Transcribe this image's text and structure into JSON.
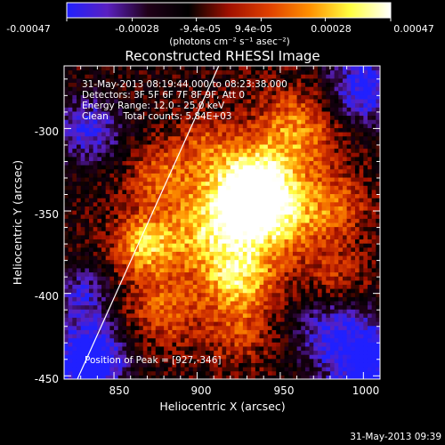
{
  "chart_data": {
    "type": "heatmap",
    "title": "Reconstructed RHESSI Image",
    "xlabel": "Heliocentric X (arcsec)",
    "ylabel": "Heliocentric Y (arcsec)",
    "xlim": [
      820,
      1010
    ],
    "ylim": [
      -452,
      -262
    ],
    "x_ticks": [
      "850",
      "900",
      "950",
      "1000"
    ],
    "x_tick_values": [
      850,
      900,
      950,
      1000
    ],
    "y_ticks": [
      "-300",
      "-350",
      "-400",
      "-450"
    ],
    "y_tick_values": [
      -300,
      -350,
      -400,
      -450
    ],
    "colorbar": {
      "min": -0.00047,
      "max": 0.00047,
      "tick_labels": [
        "-0.00047",
        "-0.00028",
        "-9.4e-05",
        "9.4e-05",
        "0.00028",
        "0.00047"
      ],
      "tick_values": [
        -0.00047,
        -0.00028,
        -9.4e-05,
        9.4e-05,
        0.00028,
        0.00047
      ],
      "unit_label": "(photons cm⁻² s⁻¹ asec⁻²)",
      "colormap_stops": [
        "#2020ff",
        "#5a20c0",
        "#200018",
        "#000000",
        "#a01000",
        "#e04000",
        "#ff9000",
        "#ffff40",
        "#ffffff"
      ]
    },
    "annotations": [
      "31-May-2013 08:19:44.000 to 08:23:38.000",
      "Detectors: 3F 5F 6F 7F 8F 9F, Att 0",
      "Energy Range: 12.0 - 25.0 keV",
      "Clean     Total counts: 5.84E+03"
    ],
    "peak_label": "Position of Peak = [927,-346]",
    "peak": [
      927,
      -346
    ],
    "limb_line": [
      [
        828,
        -452
      ],
      [
        913,
        -262
      ]
    ],
    "blobs": [
      {
        "x": 927,
        "y": -346,
        "amp": 1.0,
        "w": 18
      },
      {
        "x": 938,
        "y": -330,
        "amp": 0.55,
        "w": 16
      },
      {
        "x": 925,
        "y": -390,
        "amp": 0.75,
        "w": 16
      },
      {
        "x": 955,
        "y": -355,
        "amp": 0.5,
        "w": 18
      },
      {
        "x": 960,
        "y": -300,
        "amp": 0.55,
        "w": 18
      },
      {
        "x": 905,
        "y": -310,
        "amp": 0.35,
        "w": 14
      },
      {
        "x": 868,
        "y": -370,
        "amp": 0.7,
        "w": 13
      },
      {
        "x": 878,
        "y": -330,
        "amp": 0.45,
        "w": 14
      },
      {
        "x": 880,
        "y": -410,
        "amp": 0.45,
        "w": 16
      },
      {
        "x": 985,
        "y": -345,
        "amp": 0.35,
        "w": 14
      },
      {
        "x": 985,
        "y": -390,
        "amp": 0.3,
        "w": 14
      },
      {
        "x": 900,
        "y": -365,
        "amp": 0.45,
        "w": 16
      },
      {
        "x": 925,
        "y": -425,
        "amp": 0.3,
        "w": 14
      },
      {
        "x": 970,
        "y": -420,
        "amp": 0.2,
        "w": 14
      },
      {
        "x": 835,
        "y": -300,
        "amp": -0.55,
        "w": 14
      },
      {
        "x": 835,
        "y": -440,
        "amp": -0.9,
        "w": 16
      },
      {
        "x": 1000,
        "y": -275,
        "amp": -0.65,
        "w": 16
      },
      {
        "x": 1003,
        "y": -440,
        "amp": -0.75,
        "w": 20
      },
      {
        "x": 975,
        "y": -420,
        "amp": -0.55,
        "w": 14
      },
      {
        "x": 830,
        "y": -400,
        "amp": -0.45,
        "w": 12
      }
    ]
  },
  "timestamp": "31-May-2013 09:39"
}
